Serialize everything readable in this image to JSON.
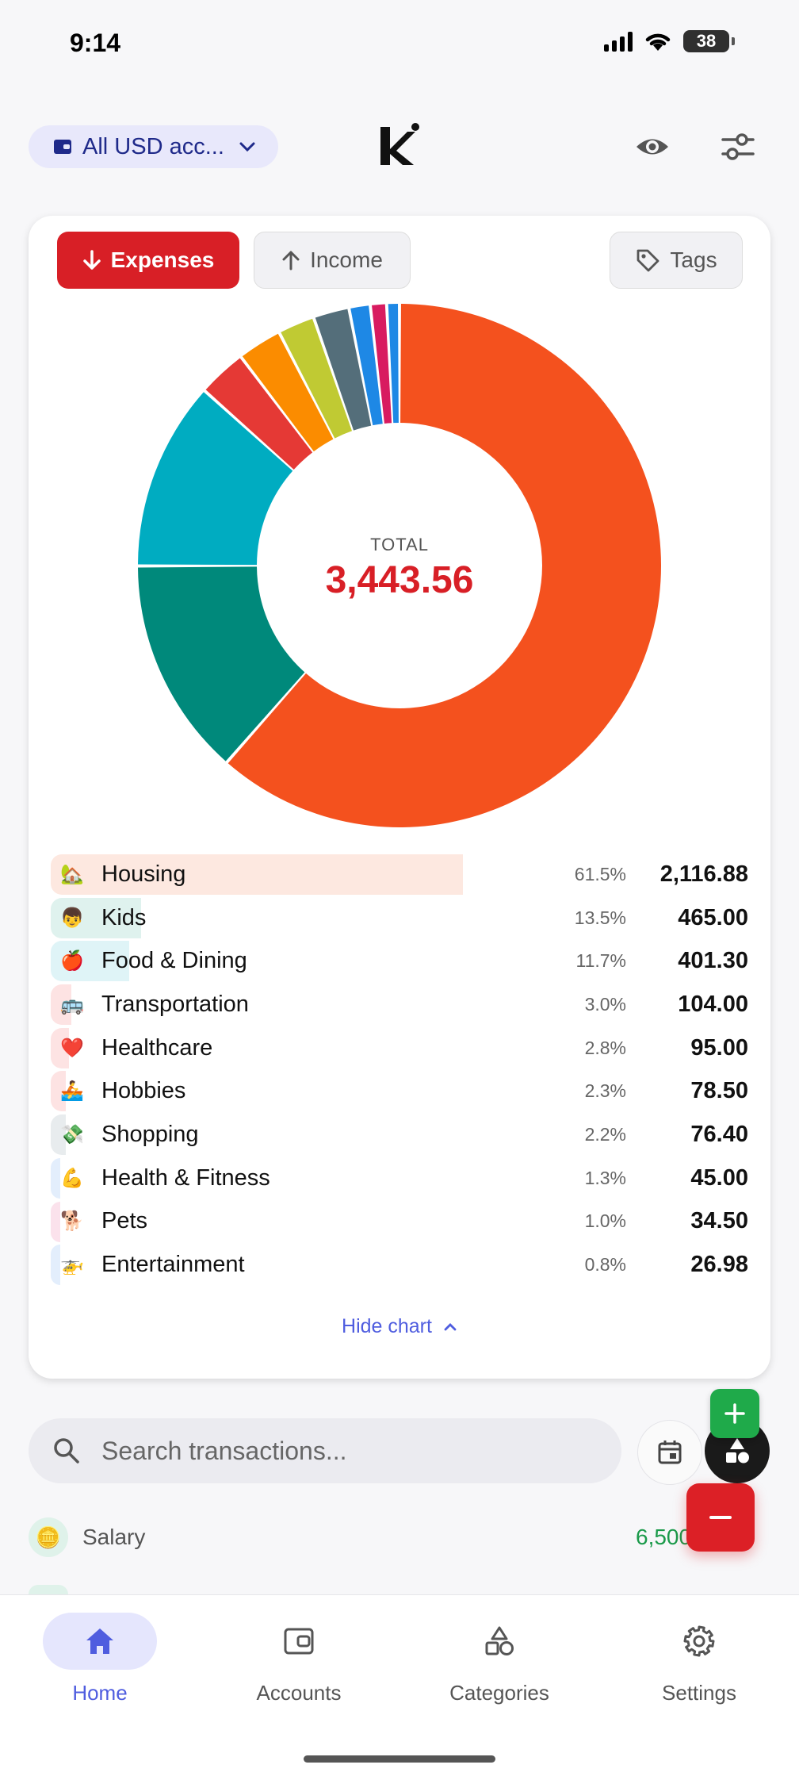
{
  "status_bar": {
    "time": "9:14",
    "battery": "38"
  },
  "header": {
    "account_selector": "All USD acc...",
    "logo_icon": "k-logo",
    "eye_icon": "eye-icon",
    "filter_icon": "sliders-icon"
  },
  "chart_card": {
    "tabs": {
      "expenses": "Expenses",
      "income": "Income",
      "tags": "Tags"
    },
    "total_label": "TOTAL",
    "total_value": "3,443.56",
    "hide_chart": "Hide chart"
  },
  "chart_data": {
    "type": "pie",
    "title": "",
    "total": 3443.56,
    "categories": [
      "Housing",
      "Kids",
      "Food & Dining",
      "Transportation",
      "Healthcare",
      "Hobbies",
      "Shopping",
      "Health & Fitness",
      "Pets",
      "Entertainment"
    ],
    "emojis": [
      "🏡",
      "👦",
      "🍎",
      "🚌",
      "❤️",
      "🚣",
      "💸",
      "💪",
      "🐕",
      "🚁"
    ],
    "values": [
      2116.88,
      465.0,
      401.3,
      104.0,
      95.0,
      78.5,
      76.4,
      45.0,
      34.5,
      26.98
    ],
    "value_labels": [
      "2,116.88",
      "465.00",
      "401.30",
      "104.00",
      "95.00",
      "78.50",
      "76.40",
      "45.00",
      "34.50",
      "26.98"
    ],
    "percents": [
      "61.5%",
      "13.5%",
      "11.7%",
      "3.0%",
      "2.8%",
      "2.3%",
      "2.2%",
      "1.3%",
      "1.0%",
      "0.8%"
    ],
    "colors": [
      "#f4511e",
      "#00897b",
      "#00acc1",
      "#e53935",
      "#fb8c00",
      "#c0ca33",
      "#546e7a",
      "#1e88e5",
      "#d81b60",
      "#1e88e5"
    ],
    "bar_tints": [
      "#fde8e0",
      "#dff2ee",
      "#dff4f7",
      "#fde3e3",
      "#fde3e3",
      "#fde3e3",
      "#e8ecee",
      "#e3eefc",
      "#fbe2ec",
      "#e3eefc"
    ]
  },
  "search": {
    "placeholder": "Search transactions..."
  },
  "transactions": [
    {
      "icon": "🪙",
      "name": "Salary",
      "amount": "6,500"
    }
  ],
  "nav": {
    "home": "Home",
    "accounts": "Accounts",
    "categories": "Categories",
    "settings": "Settings"
  }
}
